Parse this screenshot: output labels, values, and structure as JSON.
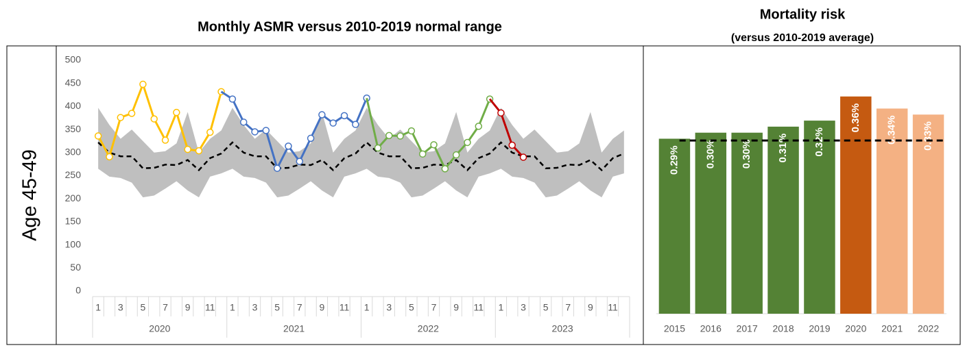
{
  "row_label": "Age 45-49",
  "chart_data": [
    {
      "type": "line",
      "title": "Monthly ASMR versus 2010-2019 normal range",
      "categories": [
        "1",
        null,
        "3",
        null,
        "5",
        null,
        "7",
        null,
        "9",
        null,
        "11",
        null,
        "1",
        null,
        "3",
        null,
        "5",
        null,
        "7",
        null,
        "9",
        null,
        "11",
        null,
        "1",
        null,
        "3",
        null,
        "5",
        null,
        "7",
        null,
        "9",
        null,
        "11",
        null,
        "1",
        null,
        "3",
        null,
        "5",
        null,
        "7",
        null,
        "9",
        null,
        "11",
        null
      ],
      "year_groups": [
        "2020",
        "2021",
        "2022",
        "2023"
      ],
      "ylim": [
        0,
        500
      ],
      "yticks": [
        0,
        50,
        100,
        150,
        200,
        250,
        300,
        350,
        400,
        450,
        500
      ],
      "band": {
        "color": "#bfbfbf",
        "upper": [
          397,
          360,
          330,
          350,
          325,
          300,
          303,
          320,
          388,
          300,
          330,
          348,
          397,
          360,
          330,
          350,
          325,
          300,
          303,
          320,
          388,
          300,
          330,
          348,
          397,
          360,
          330,
          350,
          325,
          300,
          303,
          320,
          388,
          300,
          330,
          348,
          397,
          360,
          330,
          350,
          325,
          300,
          303,
          320,
          388,
          300,
          330,
          348
        ],
        "lower": [
          265,
          248,
          245,
          235,
          203,
          207,
          222,
          238,
          218,
          203,
          248,
          255,
          265,
          248,
          245,
          235,
          203,
          207,
          222,
          238,
          218,
          203,
          248,
          255,
          265,
          248,
          245,
          235,
          203,
          207,
          222,
          238,
          218,
          203,
          248,
          255,
          265,
          248,
          245,
          235,
          203,
          207,
          222,
          238,
          218,
          203,
          248,
          255
        ]
      },
      "average": {
        "color": "#000000",
        "values": [
          322,
          300,
          292,
          292,
          266,
          267,
          274,
          273,
          284,
          262,
          288,
          298,
          322,
          300,
          292,
          292,
          266,
          267,
          274,
          273,
          284,
          262,
          288,
          298,
          322,
          300,
          292,
          292,
          266,
          267,
          274,
          273,
          284,
          262,
          288,
          298,
          322,
          300,
          292,
          292,
          266,
          267,
          274,
          273,
          284,
          262,
          288,
          298
        ]
      },
      "series": [
        {
          "color": "#ffc000",
          "values": [
            336,
            291,
            376,
            385,
            448,
            373,
            327,
            387,
            307,
            304,
            344,
            432,
            null,
            null,
            null,
            null,
            null,
            null,
            null,
            null,
            null,
            null,
            null,
            null,
            null,
            null,
            null,
            null,
            null,
            null,
            null,
            null,
            null,
            null,
            null,
            null,
            null,
            null,
            null,
            null,
            null,
            null,
            null,
            null,
            null,
            null,
            null,
            null
          ]
        },
        {
          "color": "#4472c4",
          "values": [
            null,
            null,
            null,
            null,
            null,
            null,
            null,
            null,
            null,
            null,
            null,
            null,
            416,
            366,
            345,
            348,
            266,
            314,
            281,
            331,
            382,
            364,
            380,
            361,
            418,
            null,
            null,
            null,
            null,
            null,
            null,
            null,
            null,
            null,
            null,
            null,
            null,
            null,
            null,
            null,
            null,
            null,
            null,
            null,
            null,
            null,
            null,
            null
          ]
        },
        {
          "color": "#70ad47",
          "values": [
            null,
            null,
            null,
            null,
            null,
            null,
            null,
            null,
            null,
            null,
            null,
            null,
            null,
            null,
            null,
            null,
            null,
            null,
            null,
            null,
            null,
            null,
            null,
            null,
            null,
            310,
            337,
            336,
            347,
            297,
            317,
            265,
            295,
            322,
            357,
            416,
            null,
            null,
            null,
            null,
            null,
            null,
            null,
            null,
            null,
            null,
            null,
            null
          ]
        },
        {
          "color": "#c00000",
          "values": [
            null,
            null,
            null,
            null,
            null,
            null,
            null,
            null,
            null,
            null,
            null,
            null,
            null,
            null,
            null,
            null,
            null,
            null,
            null,
            null,
            null,
            null,
            null,
            null,
            null,
            null,
            null,
            null,
            null,
            null,
            null,
            null,
            null,
            null,
            null,
            null,
            386,
            316,
            290,
            null,
            null,
            null,
            null,
            null,
            null,
            null,
            null,
            null
          ]
        }
      ]
    },
    {
      "type": "bar",
      "title": "Mortality risk",
      "subtitle": "(versus 2010-2019 average)",
      "categories": [
        "2015",
        "2016",
        "2017",
        "2018",
        "2019",
        "2020",
        "2021",
        "2022"
      ],
      "values": [
        0.29,
        0.3,
        0.3,
        0.31,
        0.32,
        0.36,
        0.34,
        0.33
      ],
      "value_labels": [
        "0.29%",
        "0.30%",
        "0.30%",
        "0.31%",
        "0.32%",
        "0.36%",
        "0.34%",
        "0.33%"
      ],
      "colors": [
        "#548235",
        "#548235",
        "#548235",
        "#548235",
        "#548235",
        "#c55a11",
        "#f4b183",
        "#f4b183"
      ],
      "reference_line": 0.287,
      "ylim": [
        0,
        0.42
      ]
    }
  ]
}
